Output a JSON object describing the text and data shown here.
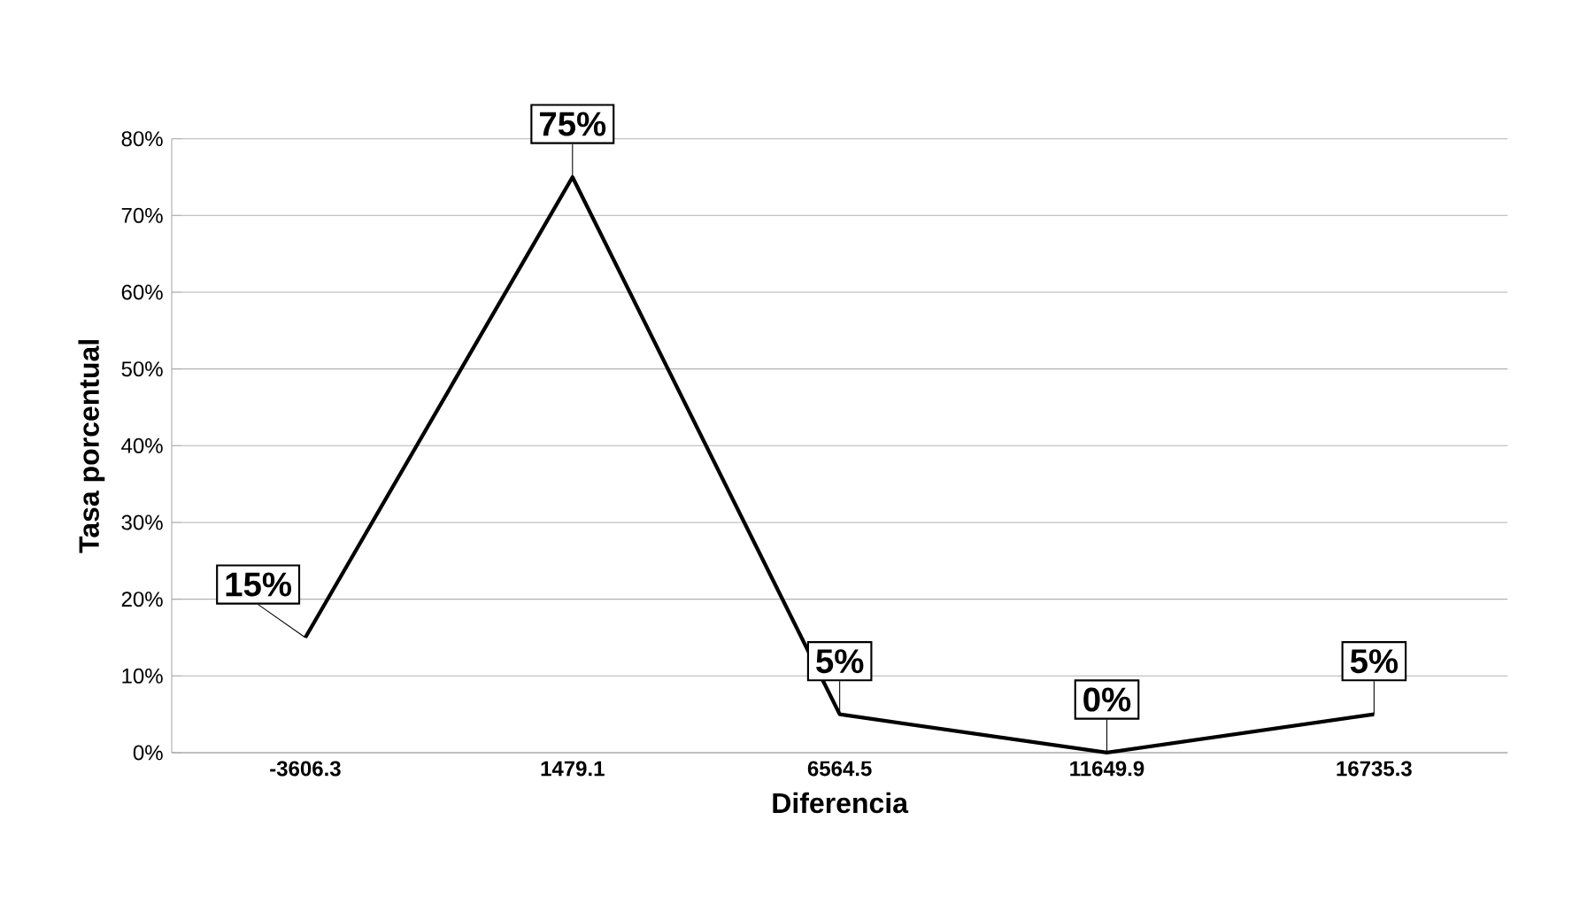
{
  "chart_data": {
    "type": "line",
    "xlabel": "Diferencia",
    "ylabel": "Tasa porcentual",
    "categories": [
      "-3606.3",
      "1479.1",
      "6564.5",
      "11649.9",
      "16735.3"
    ],
    "series": [
      {
        "color": "#000000",
        "values": [
          15,
          75,
          5,
          0,
          5
        ],
        "value_labels": [
          "15%",
          "75%",
          "5%",
          "0%",
          "5%"
        ]
      }
    ],
    "ylim": [
      0,
      80
    ],
    "yticks": [
      {
        "value": 0,
        "label": "0%"
      },
      {
        "value": 10,
        "label": "10%"
      },
      {
        "value": 20,
        "label": "20%"
      },
      {
        "value": 30,
        "label": "30%"
      },
      {
        "value": 40,
        "label": "40%"
      },
      {
        "value": 50,
        "label": "50%"
      },
      {
        "value": 60,
        "label": "60%"
      },
      {
        "value": 70,
        "label": "70%"
      },
      {
        "value": 80,
        "label": "80%"
      }
    ],
    "grid": "y"
  }
}
